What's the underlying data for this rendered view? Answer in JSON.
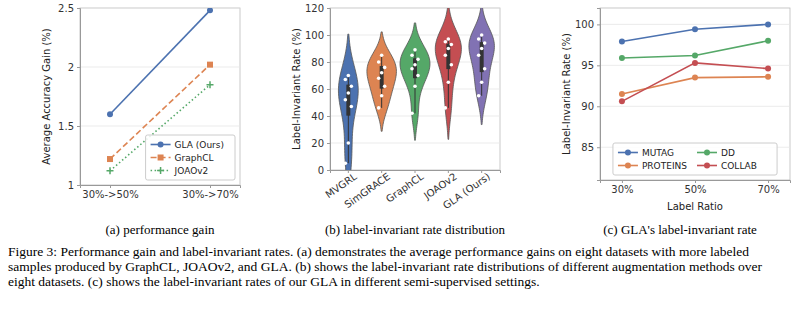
{
  "chart_data": [
    {
      "type": "line",
      "caption": "(a) performance gain",
      "y_label": "Average Accuracy Gain (%)",
      "categories": [
        "30%->50%",
        "30%->70%"
      ],
      "ylim": [
        1,
        2.5
      ],
      "yticks": [
        1,
        1.5,
        2,
        2.5
      ],
      "grid": true,
      "legend": "lower right",
      "series": [
        {
          "name": "GLA (Ours)",
          "color": "#4c72b0",
          "marker": "o",
          "line_style": "solid",
          "values": [
            1.6,
            2.48
          ]
        },
        {
          "name": "GraphCL",
          "color": "#dd8452",
          "marker": "s",
          "line_style": "dashed",
          "values": [
            1.22,
            2.02
          ]
        },
        {
          "name": "JOAOv2",
          "color": "#55a868",
          "marker": "+",
          "line_style": "dotted",
          "values": [
            1.12,
            1.85
          ]
        }
      ]
    },
    {
      "type": "violin",
      "caption": "(b) label-invariant rate distribution",
      "y_label": "Label-Invariant Rate (%)",
      "categories": [
        "MVGRL",
        "SimGRACE",
        "GraphCL",
        "JOAOv2",
        "GLA (Ours)"
      ],
      "ylim": [
        0,
        120
      ],
      "yticks": [
        0,
        20,
        40,
        60,
        80,
        100,
        120
      ],
      "grid": true,
      "colors": [
        "#4c72b0",
        "#dd8452",
        "#55a868",
        "#c44e52",
        "#8172b3"
      ],
      "values": [
        [
          5,
          20,
          47,
          52,
          57,
          62,
          67,
          70
        ],
        [
          46,
          55,
          62,
          68,
          72,
          76,
          80,
          85
        ],
        [
          42,
          62,
          70,
          75,
          78,
          82,
          85,
          89
        ],
        [
          46,
          65,
          78,
          85,
          90,
          93,
          95,
          97
        ],
        [
          55,
          65,
          75,
          85,
          90,
          94,
          97,
          100
        ]
      ]
    },
    {
      "type": "line",
      "caption": "(c) GLA's label-invariant rate",
      "x_label": "Label Ratio",
      "y_label": "Label-Invariant Rate (%)",
      "categories": [
        "30%",
        "50%",
        "70%"
      ],
      "ylim": [
        81,
        102
      ],
      "yticks": [
        85,
        90,
        95,
        100
      ],
      "grid": true,
      "legend": "lower center",
      "series": [
        {
          "name": "MUTAG",
          "color": "#4c72b0",
          "marker": "o",
          "line_style": "solid",
          "values": [
            97.9,
            99.4,
            100
          ]
        },
        {
          "name": "PROTEINS",
          "color": "#dd8452",
          "marker": "o",
          "line_style": "solid",
          "values": [
            91.5,
            93.5,
            93.6
          ]
        },
        {
          "name": "DD",
          "color": "#55a868",
          "marker": "o",
          "line_style": "solid",
          "values": [
            95.9,
            96.2,
            98.0
          ]
        },
        {
          "name": "COLLAB",
          "color": "#c44e52",
          "marker": "o",
          "line_style": "solid",
          "values": [
            90.6,
            95.3,
            94.6
          ]
        }
      ]
    }
  ],
  "caption": "Figure 3: Performance gain and label-invariant rates. (a) demonstrates the average performance gains on eight datasets with more labeled samples produced by GraphCL, JOAOv2, and GLA. (b) shows the label-invariant rate distributions of different augmentation methods over eight datasets. (c) shows the label-invariant rates of our GLA in different semi-supervised settings."
}
